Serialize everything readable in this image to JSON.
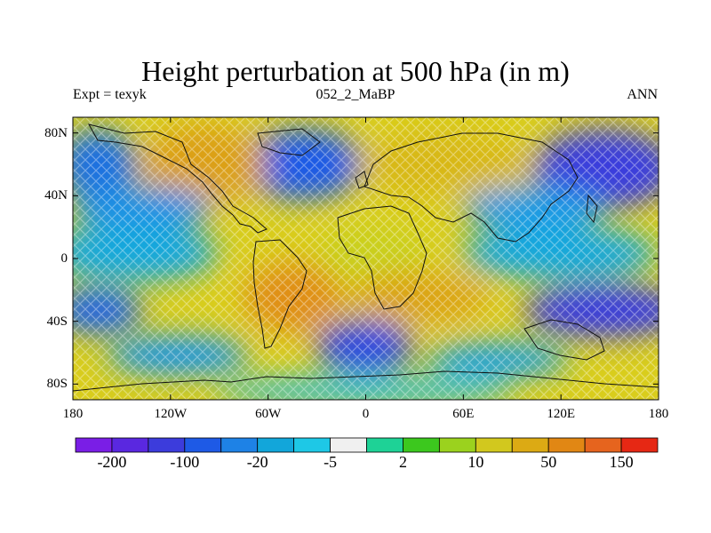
{
  "title": "Height perturbation at 500 hPa (in m)",
  "subtitle_left": "Expt = texyk",
  "subtitle_center": "052_2_MaBP",
  "subtitle_right": "ANN",
  "lat_ticks": [
    {
      "label": "80N",
      "lat": 80
    },
    {
      "label": "40N",
      "lat": 40
    },
    {
      "label": "0",
      "lat": 0
    },
    {
      "label": "40S",
      "lat": -40
    },
    {
      "label": "80S",
      "lat": -80
    }
  ],
  "lon_ticks": [
    {
      "label": "180",
      "lon": -180
    },
    {
      "label": "120W",
      "lon": -120
    },
    {
      "label": "60W",
      "lon": -60
    },
    {
      "label": "0",
      "lon": 0
    },
    {
      "label": "60E",
      "lon": 60
    },
    {
      "label": "120E",
      "lon": 120
    },
    {
      "label": "180",
      "lon": 180
    }
  ],
  "labelbar": {
    "colors": [
      "#7a1ee6",
      "#5a28e0",
      "#3c3cdc",
      "#1e5ae6",
      "#1e82e6",
      "#12a6da",
      "#1ec8e6",
      "#f0f0f0",
      "#1ed296",
      "#3cc81e",
      "#9bd21e",
      "#d2c81e",
      "#dcaa14",
      "#e18714",
      "#e6641e",
      "#e62814"
    ],
    "labels": [
      {
        "text": "-200",
        "after_box": 1
      },
      {
        "text": "-100",
        "after_box": 3
      },
      {
        "text": "-20",
        "after_box": 5
      },
      {
        "text": "-5",
        "after_box": 7
      },
      {
        "text": "2",
        "after_box": 9
      },
      {
        "text": "10",
        "after_box": 11
      },
      {
        "text": "50",
        "after_box": 13
      },
      {
        "text": "150",
        "after_box": 15
      }
    ]
  }
}
